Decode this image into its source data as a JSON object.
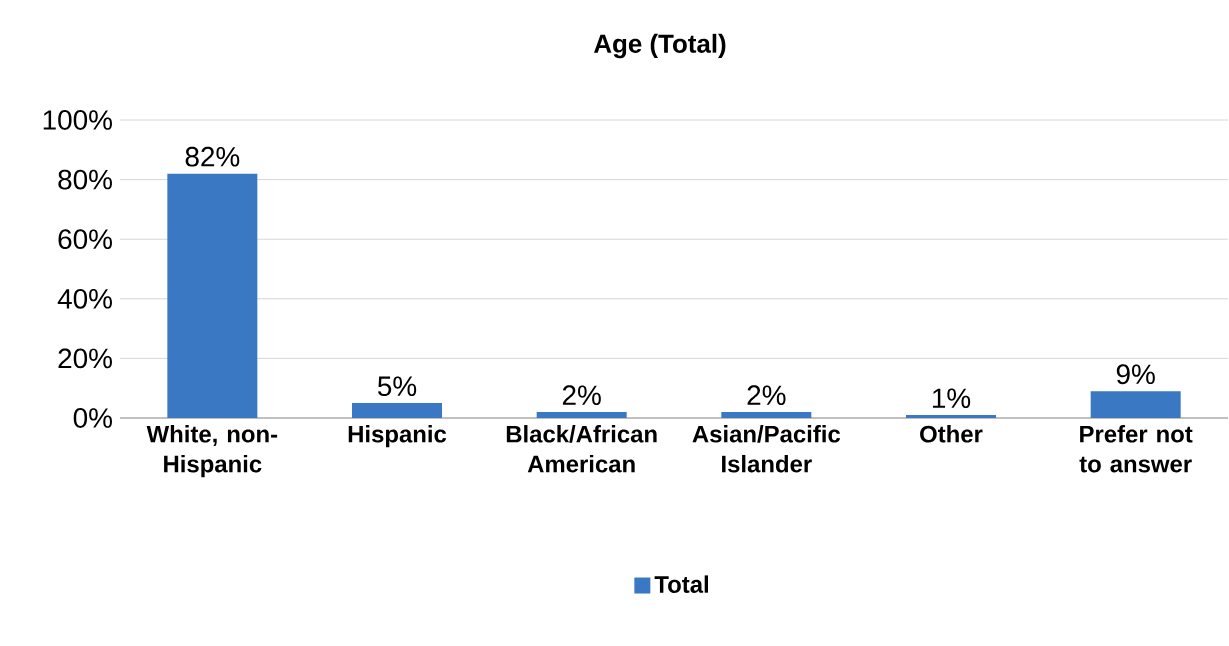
{
  "chart_data": {
    "type": "bar",
    "title": "Age (Total)",
    "categories": [
      "White, non-Hispanic",
      "Hispanic",
      "Black/African American",
      "Asian/Pacific Islander",
      "Other",
      "Prefer not to answer"
    ],
    "series": [
      {
        "name": "Total",
        "color": "#3a78c4",
        "values": [
          82,
          5,
          2,
          2,
          1,
          9
        ],
        "value_labels": [
          "82%",
          "5%",
          "2%",
          "2%",
          "1%",
          "9%"
        ]
      }
    ],
    "ylim": [
      0,
      100
    ],
    "yticks": [
      {
        "value": 0,
        "label": "0%"
      },
      {
        "value": 20,
        "label": "20%"
      },
      {
        "value": 40,
        "label": "40%"
      },
      {
        "value": 60,
        "label": "60%"
      },
      {
        "value": 80,
        "label": "80%"
      },
      {
        "value": 100,
        "label": "100%"
      }
    ],
    "grid": "y",
    "legend": "bottom"
  }
}
